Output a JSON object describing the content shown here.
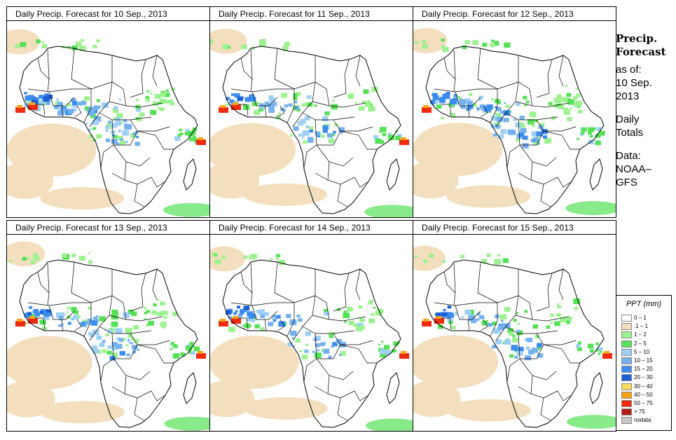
{
  "panels": [
    {
      "title": "Daily Precip. Forecast for  10 Sep., 2013",
      "intensity": 1.0
    },
    {
      "title": "Daily Precip. Forecast for  11 Sep., 2013",
      "intensity": 0.8
    },
    {
      "title": "Daily Precip. Forecast for  12 Sep., 2013",
      "intensity": 1.1
    },
    {
      "title": "Daily Precip. Forecast for  13 Sep., 2013",
      "intensity": 1.0
    },
    {
      "title": "Daily Precip. Forecast for  14 Sep., 2013",
      "intensity": 0.8
    },
    {
      "title": "Daily Precip. Forecast for  15 Sep., 2013",
      "intensity": 0.7
    }
  ],
  "side": {
    "line1": "Precip.",
    "line2": "Forecast",
    "asof": "as of:",
    "date1": "10 Sep.",
    "date2": "2013",
    "daily1": "Daily",
    "daily2": "Totals",
    "data1": "Data:",
    "data2": "NOAA–",
    "data3": "GFS"
  },
  "legend": {
    "title": "PPT (mm)",
    "items": [
      {
        "label": "0 – 1",
        "color": "#ffffff"
      },
      {
        "label": ".1 – 1",
        "color": "#f3dfbe"
      },
      {
        "label": "1 – 2",
        "color": "#9cf28e"
      },
      {
        "label": "2 – 5",
        "color": "#55e155"
      },
      {
        "label": "5 – 10",
        "color": "#9ed0f5"
      },
      {
        "label": "10 – 15",
        "color": "#74b1ef"
      },
      {
        "label": "15 – 20",
        "color": "#3b8cf0"
      },
      {
        "label": "20 – 30",
        "color": "#1760d8"
      },
      {
        "label": "30 – 40",
        "color": "#f8db5e"
      },
      {
        "label": "40 – 50",
        "color": "#f7a314"
      },
      {
        "label": "50 – 75",
        "color": "#ef2a0e"
      },
      {
        "label": "> 75",
        "color": "#b01e14"
      },
      {
        "label": "nodata",
        "color": "#c8c8c8"
      }
    ]
  }
}
